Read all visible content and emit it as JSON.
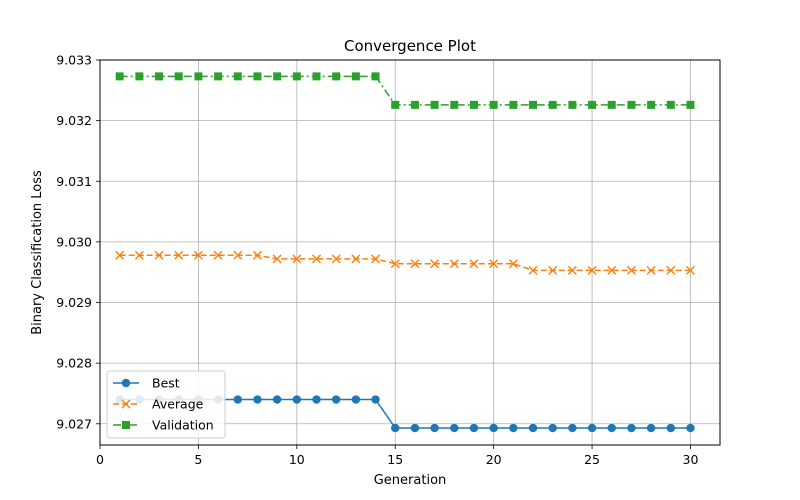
{
  "chart_data": {
    "type": "line",
    "title": "Convergence Plot",
    "xlabel": "Generation",
    "ylabel": "Binary Classification Loss",
    "xlim": [
      0,
      31.5
    ],
    "ylim": [
      9.02665,
      9.033
    ],
    "xticks": [
      0,
      5,
      10,
      15,
      20,
      25,
      30
    ],
    "xtick_labels": [
      "0",
      "5",
      "10",
      "15",
      "20",
      "25",
      "30"
    ],
    "yticks": [
      9.027,
      9.028,
      9.029,
      9.03,
      9.031,
      9.032,
      9.033
    ],
    "ytick_labels": [
      "9.027",
      "9.028",
      "9.029",
      "9.030",
      "9.031",
      "9.032",
      "9.033"
    ],
    "grid": true,
    "legend_position": "lower-left",
    "x": [
      1,
      2,
      3,
      4,
      5,
      6,
      7,
      8,
      9,
      10,
      11,
      12,
      13,
      14,
      15,
      16,
      17,
      18,
      19,
      20,
      21,
      22,
      23,
      24,
      25,
      26,
      27,
      28,
      29,
      30
    ],
    "series": [
      {
        "name": "Best",
        "color": "#1f77b4",
        "marker": "circle",
        "line_style": "solid",
        "values": [
          9.0274,
          9.0274,
          9.0274,
          9.0274,
          9.0274,
          9.0274,
          9.0274,
          9.0274,
          9.0274,
          9.0274,
          9.0274,
          9.0274,
          9.0274,
          9.0274,
          9.02693,
          9.02693,
          9.02693,
          9.02693,
          9.02693,
          9.02693,
          9.02693,
          9.02693,
          9.02693,
          9.02693,
          9.02693,
          9.02693,
          9.02693,
          9.02693,
          9.02693,
          9.02693
        ]
      },
      {
        "name": "Average",
        "color": "#ff7f0e",
        "marker": "x",
        "line_style": "dashed",
        "values": [
          9.02978,
          9.02978,
          9.02978,
          9.02978,
          9.02978,
          9.02978,
          9.02978,
          9.02978,
          9.02972,
          9.02972,
          9.02972,
          9.02972,
          9.02972,
          9.02972,
          9.02964,
          9.02964,
          9.02964,
          9.02964,
          9.02964,
          9.02964,
          9.02964,
          9.02953,
          9.02953,
          9.02953,
          9.02953,
          9.02953,
          9.02953,
          9.02953,
          9.02953,
          9.02953
        ]
      },
      {
        "name": "Validation",
        "color": "#2ca02c",
        "marker": "square",
        "line_style": "dashdot",
        "values": [
          9.03273,
          9.03273,
          9.03273,
          9.03273,
          9.03273,
          9.03273,
          9.03273,
          9.03273,
          9.03273,
          9.03273,
          9.03273,
          9.03273,
          9.03273,
          9.03273,
          9.03226,
          9.03226,
          9.03226,
          9.03226,
          9.03226,
          9.03226,
          9.03226,
          9.03226,
          9.03226,
          9.03226,
          9.03226,
          9.03226,
          9.03226,
          9.03226,
          9.03226,
          9.03226
        ]
      }
    ]
  }
}
